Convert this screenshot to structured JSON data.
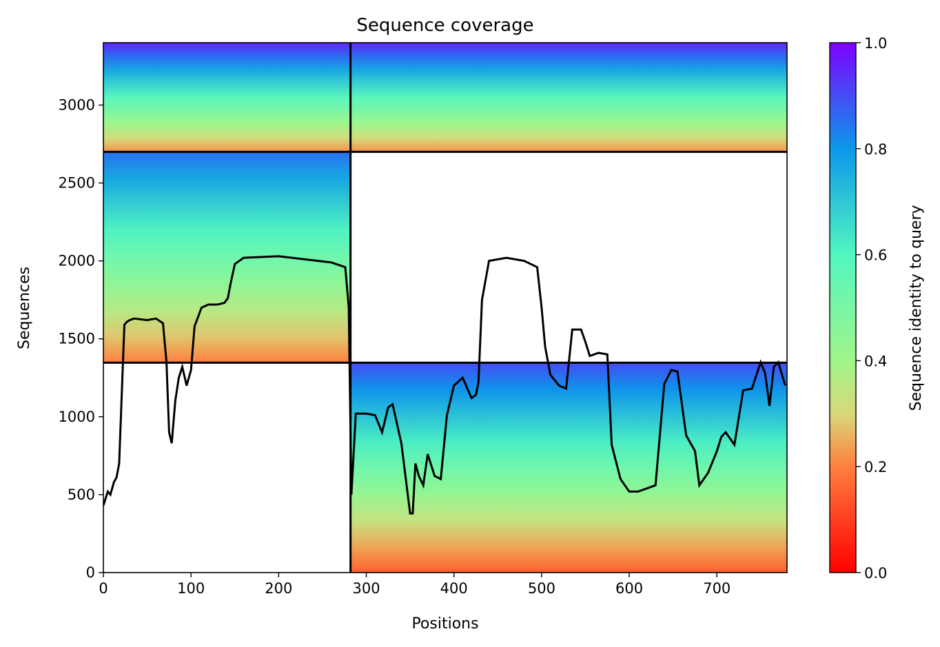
{
  "chart_data": {
    "type": "heatmap",
    "title": "Sequence coverage",
    "xlabel": "Positions",
    "ylabel": "Sequences",
    "colorbar_label": "Sequence identity to query",
    "xlim": [
      0,
      780
    ],
    "ylim": [
      0,
      3400
    ],
    "x_ticks": [
      0,
      100,
      200,
      300,
      400,
      500,
      600,
      700
    ],
    "y_ticks": [
      0,
      500,
      1000,
      1500,
      2000,
      2500,
      3000
    ],
    "colorbar_range": [
      0,
      1
    ],
    "colorbar_ticks": [
      "0.0",
      "0.2",
      "0.4",
      "0.6",
      "0.8",
      "1.0"
    ],
    "colormap": "rainbow_r",
    "grid": false,
    "boundaries": {
      "x": [
        282
      ],
      "y": [
        1347,
        2700
      ]
    },
    "blocks": [
      {
        "x": [
          0,
          282
        ],
        "y": [
          2700,
          3400
        ],
        "identity_bottom": 0.22,
        "identity_top": 0.95
      },
      {
        "x": [
          282,
          780
        ],
        "y": [
          2700,
          3400
        ],
        "identity_bottom": 0.22,
        "identity_top": 0.95
      },
      {
        "x": [
          0,
          282
        ],
        "y": [
          1347,
          2700
        ],
        "identity_bottom": 0.2,
        "identity_top": 0.85
      },
      {
        "x": [
          282,
          780
        ],
        "y": [
          0,
          1347
        ],
        "identity_bottom": 0.15,
        "identity_top": 0.9
      }
    ],
    "coverage_line": {
      "x": [
        0,
        5,
        8,
        12,
        15,
        18,
        22,
        24,
        27,
        30,
        35,
        50,
        60,
        68,
        72,
        75,
        78,
        82,
        86,
        90,
        95,
        100,
        104,
        108,
        112,
        120,
        130,
        138,
        142,
        145,
        150,
        160,
        200,
        260,
        276,
        280,
        283,
        288,
        300,
        310,
        318,
        325,
        330,
        340,
        350,
        353,
        356,
        360,
        365,
        370,
        378,
        385,
        392,
        400,
        410,
        420,
        425,
        428,
        432,
        440,
        460,
        480,
        495,
        500,
        504,
        510,
        520,
        528,
        535,
        545,
        550,
        555,
        565,
        575,
        580,
        590,
        595,
        600,
        610,
        620,
        630,
        640,
        648,
        655,
        665,
        675,
        680,
        690,
        700,
        705,
        710,
        720,
        730,
        740,
        750,
        755,
        760,
        765,
        770,
        778
      ],
      "y": [
        430,
        520,
        500,
        580,
        610,
        700,
        1300,
        1590,
        1610,
        1620,
        1630,
        1620,
        1630,
        1600,
        1350,
        900,
        830,
        1100,
        1250,
        1320,
        1200,
        1300,
        1580,
        1640,
        1700,
        1720,
        1720,
        1730,
        1760,
        1850,
        1980,
        2020,
        2030,
        1990,
        1960,
        1700,
        500,
        1020,
        1020,
        1010,
        900,
        1060,
        1080,
        830,
        380,
        380,
        700,
        620,
        560,
        760,
        620,
        600,
        1010,
        1200,
        1250,
        1120,
        1140,
        1220,
        1750,
        2000,
        2020,
        2000,
        1960,
        1700,
        1450,
        1270,
        1200,
        1180,
        1560,
        1560,
        1480,
        1390,
        1410,
        1400,
        820,
        600,
        560,
        520,
        520,
        540,
        560,
        1210,
        1300,
        1290,
        880,
        780,
        560,
        640,
        780,
        870,
        900,
        820,
        1170,
        1180,
        1350,
        1280,
        1070,
        1320,
        1350,
        1200
      ]
    }
  }
}
